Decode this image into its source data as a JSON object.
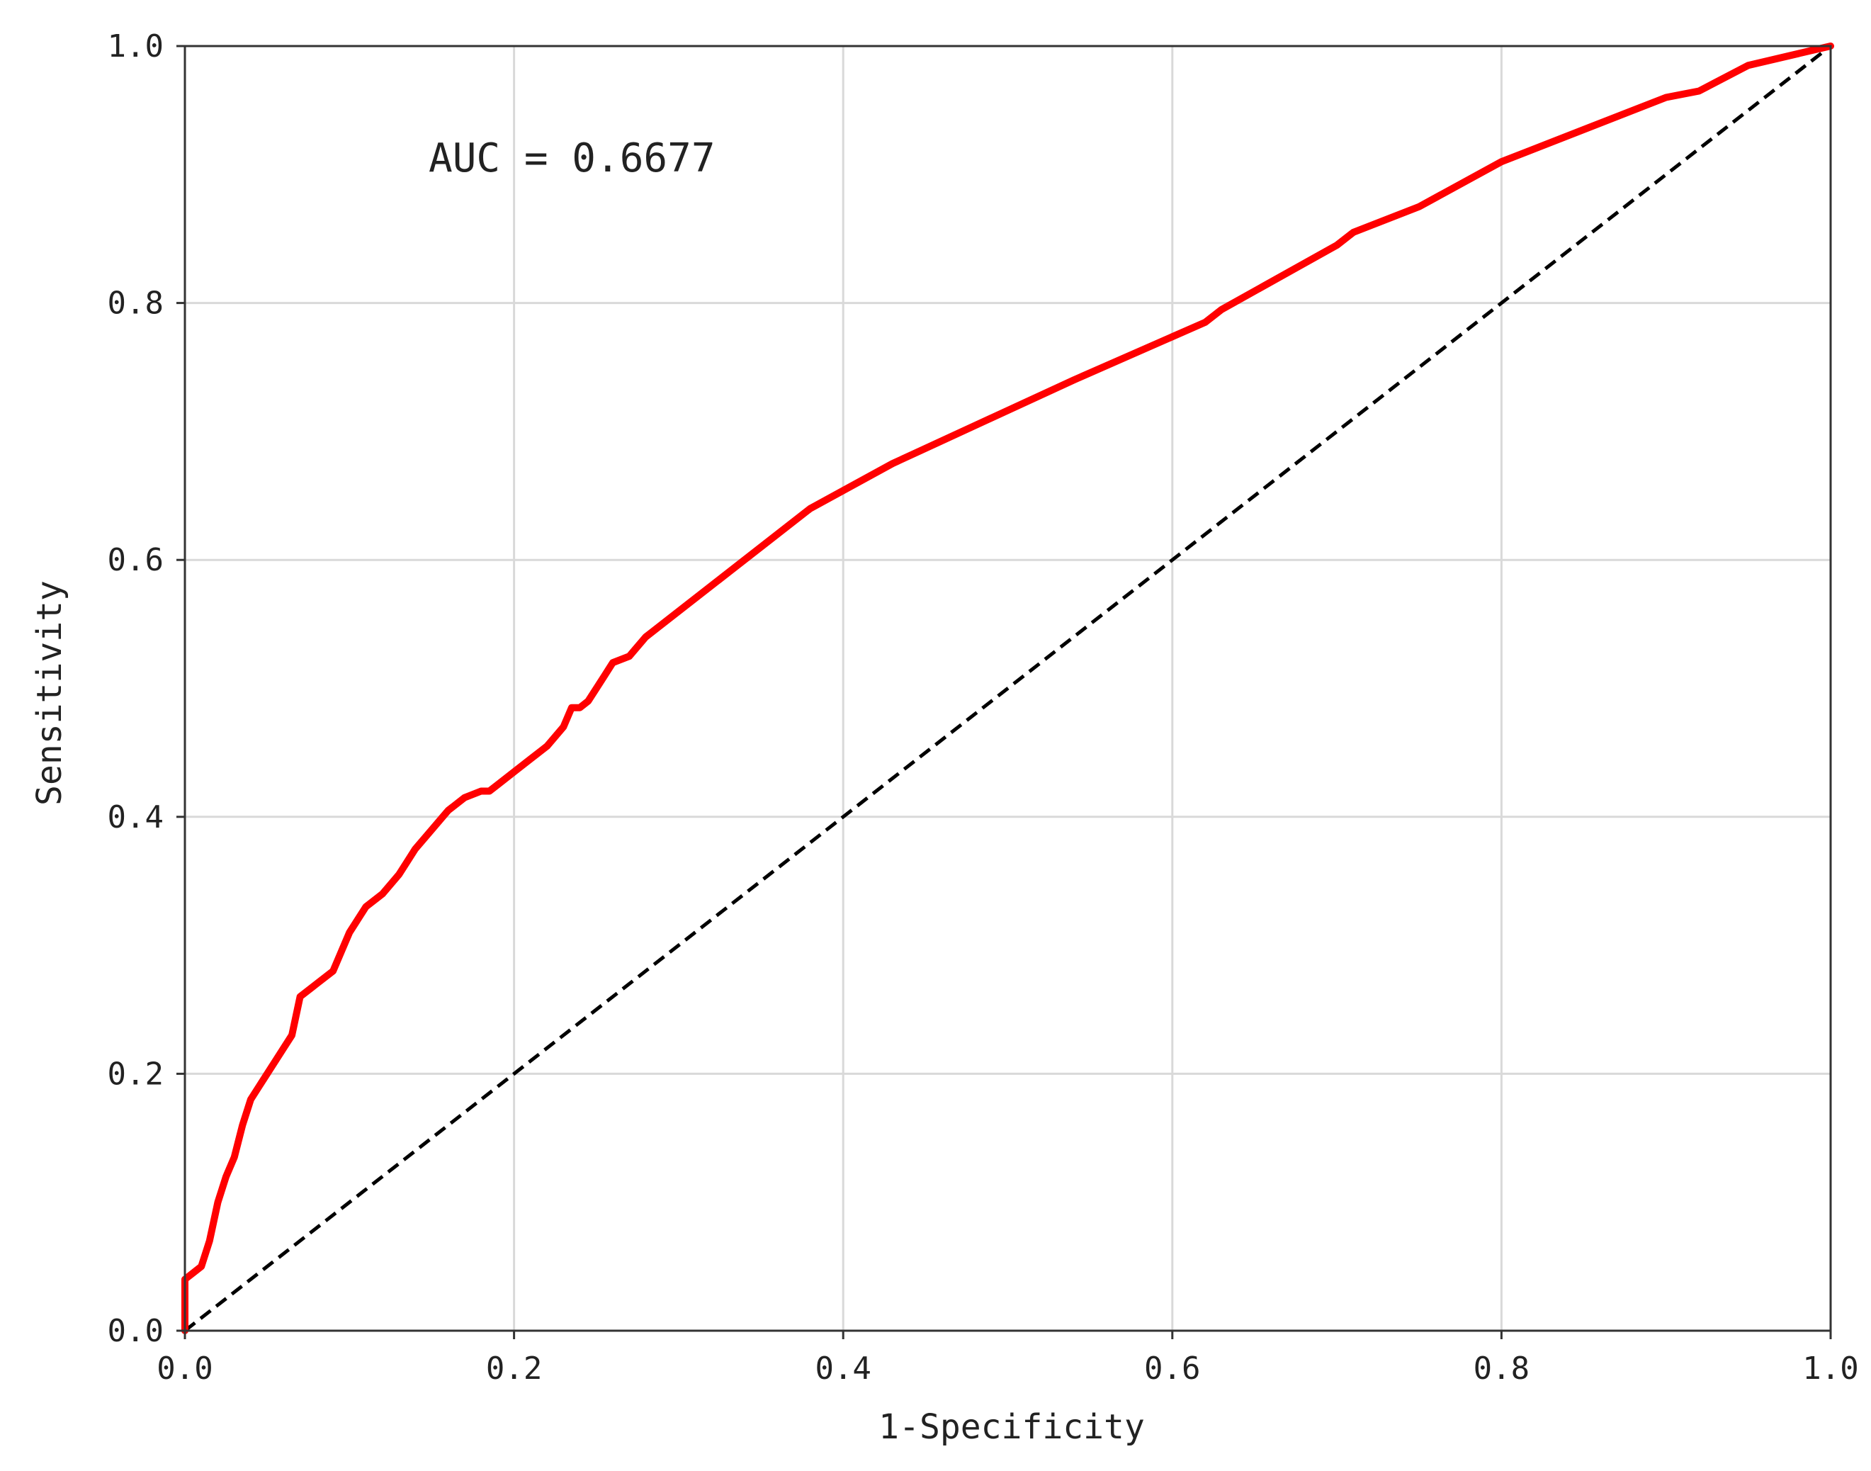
{
  "chart_data": {
    "type": "line",
    "title": "",
    "xlabel": "1-Specificity",
    "ylabel": "Sensitivity",
    "xlim": [
      0,
      1
    ],
    "ylim": [
      0,
      1
    ],
    "xticks": [
      "0.0",
      "0.2",
      "0.4",
      "0.6",
      "0.8",
      "1.0"
    ],
    "yticks": [
      "0.0",
      "0.2",
      "0.4",
      "0.6",
      "0.8",
      "1.0"
    ],
    "grid": true,
    "annotation": "AUC = 0.6677",
    "colors": {
      "roc": "#ff0000",
      "reference": "#000000",
      "grid": "#d9d9d9",
      "axes": "#333333"
    },
    "series": [
      {
        "style": "solid",
        "x": [
          0.0,
          0.0,
          0.005,
          0.01,
          0.015,
          0.02,
          0.025,
          0.03,
          0.035,
          0.04,
          0.045,
          0.05,
          0.06,
          0.065,
          0.07,
          0.075,
          0.08,
          0.09,
          0.095,
          0.1,
          0.11,
          0.12,
          0.13,
          0.135,
          0.14,
          0.15,
          0.16,
          0.17,
          0.18,
          0.185,
          0.19,
          0.2,
          0.21,
          0.22,
          0.23,
          0.235,
          0.24,
          0.245,
          0.25,
          0.255,
          0.26,
          0.27,
          0.28,
          0.33,
          0.38,
          0.43,
          0.54,
          0.62,
          0.63,
          0.7,
          0.71,
          0.75,
          0.8,
          0.85,
          0.9,
          0.92,
          0.95,
          1.0
        ],
        "y": [
          0.0,
          0.04,
          0.045,
          0.05,
          0.07,
          0.1,
          0.12,
          0.135,
          0.16,
          0.18,
          0.19,
          0.2,
          0.22,
          0.23,
          0.26,
          0.265,
          0.27,
          0.28,
          0.295,
          0.31,
          0.33,
          0.34,
          0.355,
          0.365,
          0.375,
          0.39,
          0.405,
          0.415,
          0.42,
          0.42,
          0.425,
          0.435,
          0.445,
          0.455,
          0.47,
          0.485,
          0.485,
          0.49,
          0.5,
          0.51,
          0.52,
          0.525,
          0.54,
          0.59,
          0.64,
          0.675,
          0.74,
          0.785,
          0.795,
          0.845,
          0.855,
          0.875,
          0.91,
          0.935,
          0.96,
          0.965,
          0.985,
          1.0
        ]
      },
      {
        "style": "dashed",
        "x": [
          0,
          1
        ],
        "y": [
          0,
          1
        ]
      }
    ]
  }
}
